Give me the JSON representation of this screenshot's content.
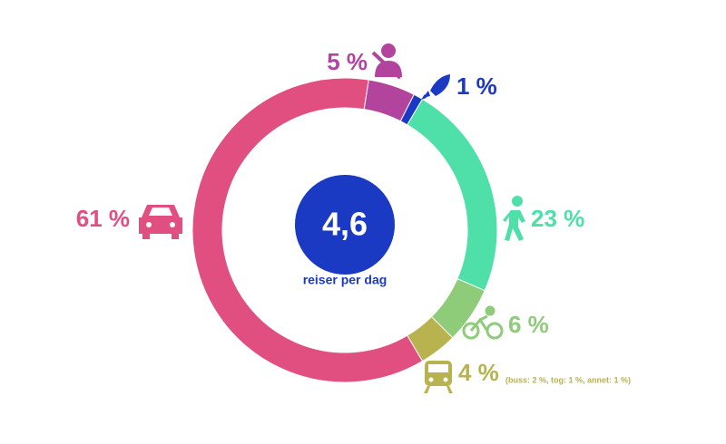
{
  "chart_data": {
    "type": "donut",
    "categories": [
      "Passasjer",
      "Annet",
      "Gange",
      "Sykkel",
      "Kollektiv",
      "Bilfører"
    ],
    "values": [
      5,
      1,
      23,
      6,
      4,
      61
    ],
    "value_labels": [
      "5 %",
      "1 %",
      "23 %",
      "6 %",
      "4 %",
      "61 %"
    ],
    "colors": [
      "#b3449e",
      "#1b3ac4",
      "#4fe0a9",
      "#8fcc7a",
      "#b8b24f",
      "#e04f80"
    ],
    "center_label": "4,6",
    "center_sublabel": "reiser per dag",
    "center_color": "#1b3ac4",
    "annotation": "(buss: 2 %, tog: 1 %, annet: 1 %)"
  }
}
